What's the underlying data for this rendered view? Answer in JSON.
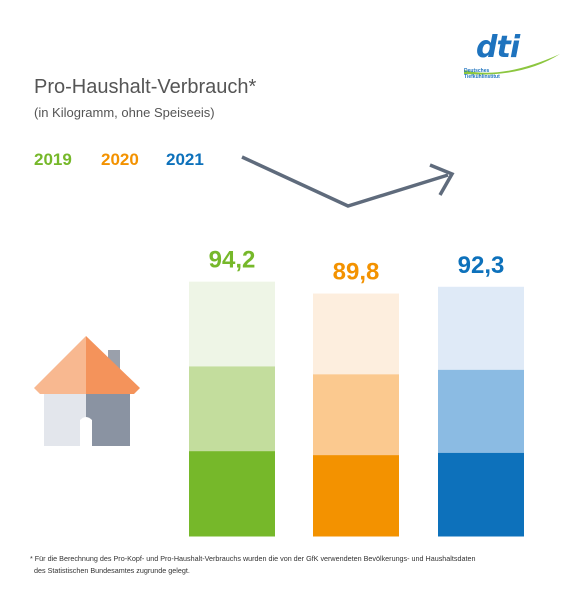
{
  "logo": {
    "word": "dti",
    "sub_line1": "Deutsches",
    "sub_line2": "Tiefkühlinstitut"
  },
  "header": {
    "title": "Pro-Haushalt-Verbrauch*",
    "subtitle": "(in Kilogramm, ohne Speiseeis)"
  },
  "footnote": {
    "line1": "* Für die Berechnung des Pro-Kopf- und Pro-Haushalt-Verbrauchs wurden die von der GfK verwendeten Bevölkerungs- und Haushaltsdaten",
    "line2": "des Statistischen Bundesamtes zugrunde gelegt."
  },
  "chart_data": {
    "type": "bar",
    "categories": [
      "2019",
      "2020",
      "2021"
    ],
    "values": [
      94.2,
      89.8,
      92.3
    ],
    "value_labels": [
      "94,2",
      "89,8",
      "92,3"
    ],
    "title": "Pro-Haushalt-Verbrauch*",
    "subtitle": "(in Kilogramm, ohne Speiseeis)",
    "legend": [
      "2019",
      "2020",
      "2021"
    ],
    "legend_placement": "top-left",
    "trend_arrow": "down-then-up",
    "grid": false,
    "colors": {
      "2019": [
        "#76b82a",
        "#c3dd9d",
        "#eef5e6"
      ],
      "2020": [
        "#f39200",
        "#fbc98f",
        "#fdeede"
      ],
      "2021": [
        "#0d71bb",
        "#8bbbe3",
        "#dfeaf7"
      ]
    }
  }
}
